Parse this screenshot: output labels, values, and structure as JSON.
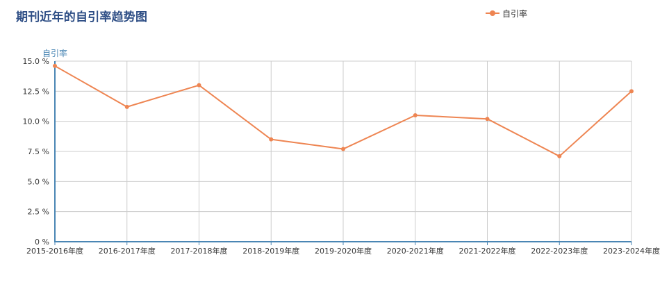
{
  "colors": {
    "series": "#ee8552",
    "axis": "#4a86b4",
    "grid": "#cccccc",
    "title": "#2f4f86"
  },
  "chart_data": {
    "type": "line",
    "title": "期刊近年的自引率趋势图",
    "ylabel": "自引率",
    "xlabel": "",
    "categories": [
      "2015-2016年度",
      "2016-2017年度",
      "2017-2018年度",
      "2018-2019年度",
      "2019-2020年度",
      "2020-2021年度",
      "2021-2022年度",
      "2022-2023年度",
      "2023-2024年度"
    ],
    "series": [
      {
        "name": "自引率",
        "values": [
          14.6,
          11.2,
          13.0,
          8.5,
          7.7,
          10.5,
          10.2,
          7.1,
          12.5
        ]
      }
    ],
    "ylim": [
      0,
      15
    ],
    "yticks": [
      0,
      2.5,
      5,
      7.5,
      10,
      12.5,
      15
    ],
    "ytick_labels": [
      "0 %",
      "2.5 %",
      "5.0 %",
      "7.5 %",
      "10.0 %",
      "12.5 %",
      "15.0 %"
    ],
    "grid": true,
    "legend_position": "top-right"
  }
}
